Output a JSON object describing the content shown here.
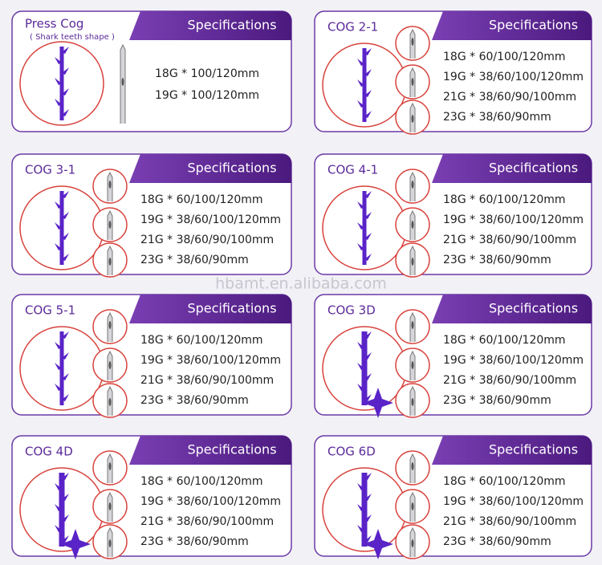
{
  "watermark": "hbamt.en.alibaba.com",
  "cards": [
    {
      "title": "Press Cog",
      "subtitle": "( Shark teeth shape )",
      "header": "Specifications",
      "specs": [
        "18G * 100/120mm",
        "19G * 100/120mm"
      ]
    },
    {
      "title": "COG 2-1",
      "header": "Specifications",
      "specs": [
        "18G * 60/100/120mm",
        "19G * 38/60/100/120mm",
        "21G * 38/60/90/100mm",
        "23G * 38/60/90mm"
      ]
    },
    {
      "title": "COG 3-1",
      "header": "Specifications",
      "specs": [
        "18G * 60/100/120mm",
        "19G * 38/60/100/120mm",
        "21G * 38/60/90/100mm",
        "23G * 38/60/90mm"
      ]
    },
    {
      "title": "COG 4-1",
      "header": "Specifications",
      "specs": [
        "18G * 60/100/120mm",
        "19G * 38/60/100/120mm",
        "21G * 38/60/90/100mm",
        "23G * 38/60/90mm"
      ]
    },
    {
      "title": "COG 5-1",
      "header": "Specifications",
      "specs": [
        "18G * 60/100/120mm",
        "19G * 38/60/100/120mm",
        "21G * 38/60/90/100mm",
        "23G * 38/60/90mm"
      ]
    },
    {
      "title": "COG 3D",
      "header": "Specifications",
      "specs": [
        "18G * 60/100/120mm",
        "19G * 38/60/100/120mm",
        "21G * 38/60/90/100mm",
        "23G * 38/60/90mm"
      ]
    },
    {
      "title": "COG 4D",
      "header": "Specifications",
      "specs": [
        "18G * 60/100/120mm",
        "19G * 38/60/100/120mm",
        "21G * 38/60/90/100mm",
        "23G * 38/60/90mm"
      ]
    },
    {
      "title": "COG 6D",
      "header": "Specifications",
      "specs": [
        "18G * 60/100/120mm",
        "19G * 38/60/100/120mm",
        "21G * 38/60/90/100mm",
        "23G * 38/60/90mm"
      ]
    }
  ]
}
